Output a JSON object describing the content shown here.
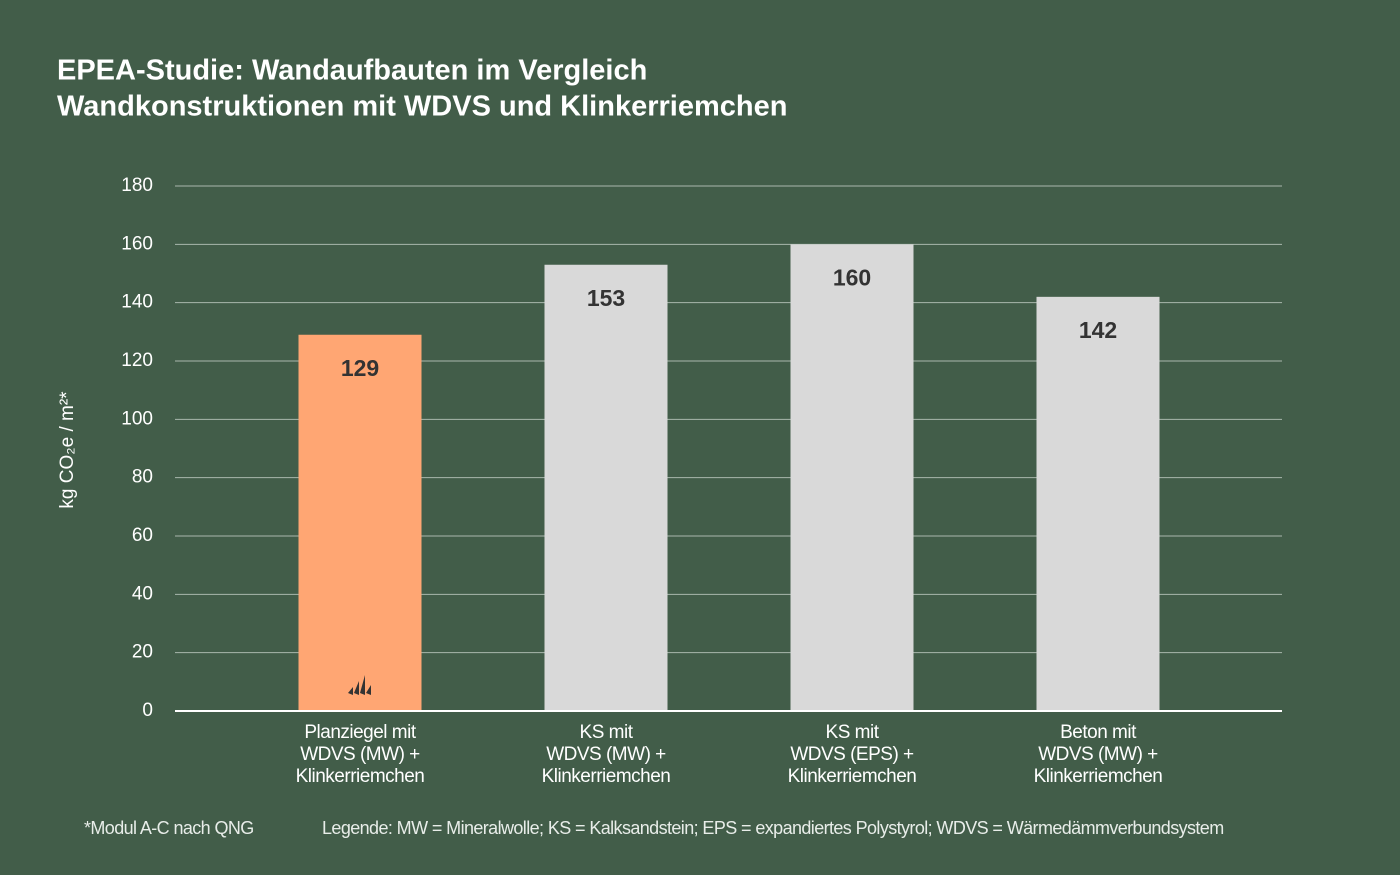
{
  "chart_data": {
    "type": "bar",
    "title": "EPEA-Studie: Wandaufbauten im Vergleich",
    "subtitle": "Wandkonstruktionen mit WDVS und Klinkerriemchen",
    "y_label": "kg CO₂e / m²*",
    "categories": [
      "Planziegel mit\nWDVS (MW) +\nKlinkerriemchen",
      "KS mit\nWDVS (MW)  +\nKlinkerriemchen",
      "KS mit\nWDVS (EPS)  +\nKlinkerriemchen",
      "Beton mit\nWDVS (MW) +\nKlinkerriemchen"
    ],
    "values": [
      129,
      153,
      160,
      142
    ],
    "colors": [
      "#ffa673",
      "#d9d9d9",
      "#d9d9d9",
      "#d9d9d9"
    ],
    "ylim": [
      0,
      180
    ],
    "yticks": [
      0,
      20,
      40,
      60,
      80,
      100,
      120,
      140,
      160,
      180
    ],
    "grid": true,
    "footnote": "*Modul A-C nach QNG",
    "legend_note": "Legende: MW = Mineralwolle; KS = Kalksandstein; EPS = expandiertes Polystyrol; WDVS = Wärmedämmverbundsystem"
  }
}
